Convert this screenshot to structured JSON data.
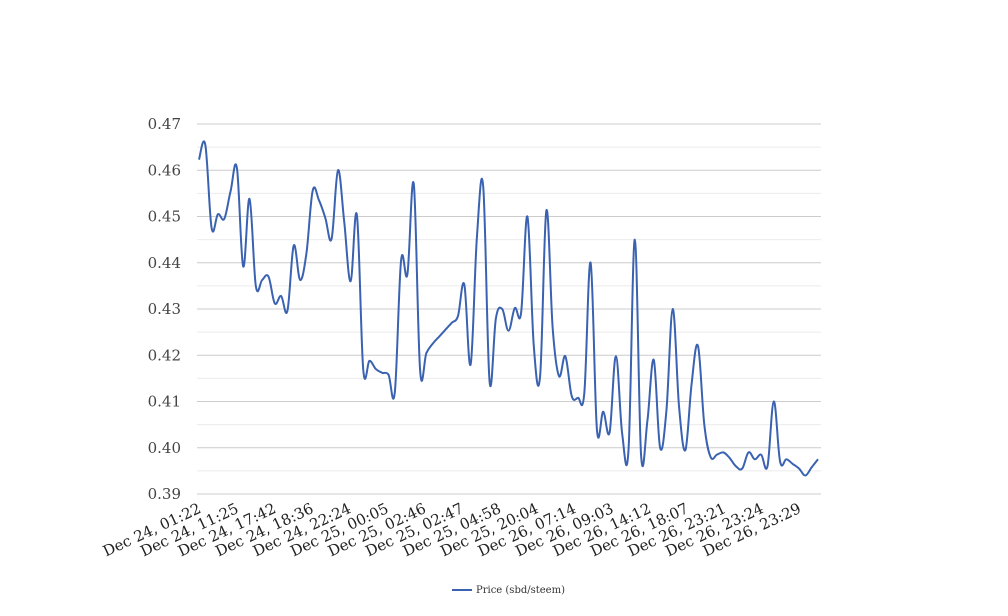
{
  "chart_data": {
    "type": "line",
    "title": "",
    "xlabel": "",
    "ylabel": "",
    "ylim": [
      0.39,
      0.47
    ],
    "yticks": [
      "0.39",
      "0.40",
      "0.41",
      "0.42",
      "0.43",
      "0.44",
      "0.45",
      "0.46",
      "0.47"
    ],
    "grid": true,
    "legend_position": "bottom",
    "x_tick_labels": [
      "Dec 24, 01:22",
      "Dec 24, 11:25",
      "Dec 24, 17:42",
      "Dec 24, 18:36",
      "Dec 24, 22:24",
      "Dec 25, 00:05",
      "Dec 25, 02:46",
      "Dec 25, 02:47",
      "Dec 25, 04:58",
      "Dec 25, 20:04",
      "Dec 26, 07:14",
      "Dec 26, 09:03",
      "Dec 26, 14:12",
      "Dec 26, 18:07",
      "Dec 26, 23:21",
      "Dec 26, 23:24",
      "Dec 26, 23:29"
    ],
    "series": [
      {
        "name": "Price (sbd/steem)",
        "color": "#3a62b1",
        "values": [
          0.4623,
          0.4655,
          0.4475,
          0.4505,
          0.4495,
          0.4555,
          0.4605,
          0.4392,
          0.4538,
          0.435,
          0.4363,
          0.437,
          0.4312,
          0.4328,
          0.4296,
          0.4437,
          0.4363,
          0.442,
          0.4556,
          0.4535,
          0.4497,
          0.4452,
          0.46,
          0.4487,
          0.436,
          0.4503,
          0.417,
          0.4188,
          0.417,
          0.4162,
          0.4158,
          0.412,
          0.4405,
          0.4375,
          0.457,
          0.4168,
          0.4205,
          0.4225,
          0.424,
          0.4255,
          0.427,
          0.4285,
          0.4353,
          0.418,
          0.4455,
          0.4565,
          0.4143,
          0.428,
          0.43,
          0.4253,
          0.4302,
          0.4292,
          0.45,
          0.422,
          0.4155,
          0.4513,
          0.4258,
          0.4155,
          0.4198,
          0.4112,
          0.4108,
          0.4118,
          0.44,
          0.404,
          0.4078,
          0.4033,
          0.4198,
          0.403,
          0.3995,
          0.445,
          0.3983,
          0.406,
          0.419,
          0.4,
          0.408,
          0.43,
          0.409,
          0.3995,
          0.414,
          0.422,
          0.405,
          0.398,
          0.3985,
          0.399,
          0.3978,
          0.396,
          0.3955,
          0.399,
          0.3975,
          0.3985,
          0.396,
          0.41,
          0.397,
          0.3975,
          0.3965,
          0.3955,
          0.394,
          0.3958,
          0.3975
        ]
      }
    ]
  }
}
